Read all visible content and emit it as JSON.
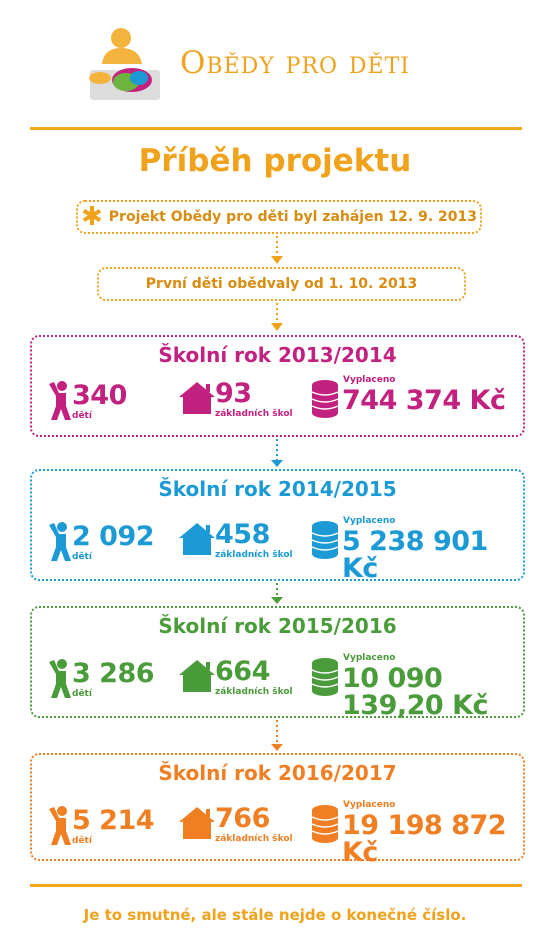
{
  "logo": {
    "title": "Obědy pro děti"
  },
  "headline": "Příběh projektu",
  "timeline": {
    "start": "Projekt Obědy pro děti byl zahájen 12. 9. 2013",
    "first_lunch": "První děti obědvaly od 1. 10. 2013"
  },
  "colors": {
    "orange": "#f0a21c",
    "magenta": "#c2217f",
    "blue": "#1b9ad6",
    "green": "#4a9b3a",
    "deep_orange": "#f07e22"
  },
  "years": [
    {
      "title": "Školní rok 2013/2014",
      "children": "340",
      "children_label": "dětí",
      "schools": "93",
      "schools_label": "základních škol",
      "paid_label": "Vyplaceno",
      "paid": "744 374 Kč",
      "color": "#c2217f"
    },
    {
      "title": "Školní rok 2014/2015",
      "children": "2 092",
      "children_label": "dětí",
      "schools": "458",
      "schools_label": "základních škol",
      "paid_label": "Vyplaceno",
      "paid": "5 238 901 Kč",
      "color": "#1b9ad6"
    },
    {
      "title": "Školní rok 2015/2016",
      "children": "3 286",
      "children_label": "dětí",
      "schools": "664",
      "schools_label": "základních škol",
      "paid_label": "Vyplaceno",
      "paid": "10 090 139,20 Kč",
      "color": "#4a9b3a"
    },
    {
      "title": "Školní rok 2016/2017",
      "children": "5 214",
      "children_label": "dětí",
      "schools": "766",
      "schools_label": "základních škol",
      "paid_label": "Vyplaceno",
      "paid": "19 198 872 Kč",
      "color": "#f07e22"
    }
  ],
  "footer": "Je to smutné, ale stále nejde o konečné číslo."
}
